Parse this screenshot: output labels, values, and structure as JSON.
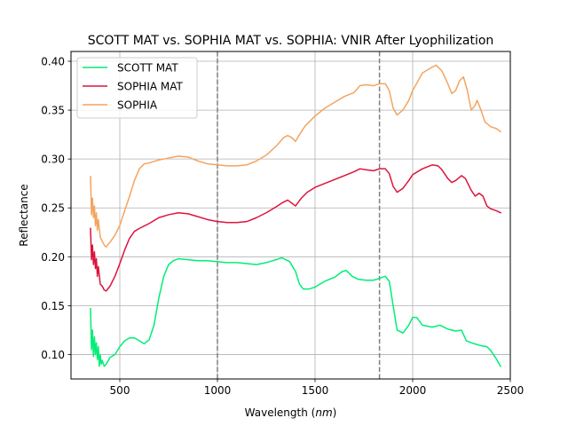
{
  "chart_data": {
    "type": "line",
    "title": "SCOTT MAT vs. SOPHIA MAT vs. SOPHIA: VNIR After Lyophilization",
    "xlabel_prefix": "Wavelength (",
    "xlabel_unit": "nm",
    "xlabel_suffix": ")",
    "ylabel": "Reflectance",
    "xlim": [
      250,
      2500
    ],
    "ylim": [
      0.075,
      0.41
    ],
    "xticks": [
      500,
      1000,
      1500,
      2000,
      2500
    ],
    "xtick_labels": [
      "500",
      "1000",
      "1500",
      "2000",
      "2500"
    ],
    "yticks": [
      0.1,
      0.15,
      0.2,
      0.25,
      0.3,
      0.35,
      0.4
    ],
    "ytick_labels": [
      "0.10",
      "0.15",
      "0.20",
      "0.25",
      "0.30",
      "0.35",
      "0.40"
    ],
    "grid": true,
    "legend_position": "top-left",
    "vlines": [
      1000,
      1830
    ],
    "vline_color": "#808080",
    "series": [
      {
        "name": "SCOTT MAT",
        "color": "#00ee76",
        "points": [
          [
            350,
            0.147
          ],
          [
            355,
            0.105
          ],
          [
            360,
            0.125
          ],
          [
            365,
            0.098
          ],
          [
            370,
            0.118
          ],
          [
            375,
            0.1
          ],
          [
            380,
            0.112
          ],
          [
            385,
            0.095
          ],
          [
            390,
            0.108
          ],
          [
            395,
            0.088
          ],
          [
            400,
            0.1
          ],
          [
            405,
            0.09
          ],
          [
            410,
            0.094
          ],
          [
            420,
            0.088
          ],
          [
            430,
            0.09
          ],
          [
            450,
            0.097
          ],
          [
            475,
            0.1
          ],
          [
            500,
            0.108
          ],
          [
            525,
            0.114
          ],
          [
            550,
            0.117
          ],
          [
            575,
            0.117
          ],
          [
            600,
            0.114
          ],
          [
            625,
            0.111
          ],
          [
            650,
            0.115
          ],
          [
            675,
            0.13
          ],
          [
            700,
            0.158
          ],
          [
            725,
            0.18
          ],
          [
            750,
            0.192
          ],
          [
            775,
            0.196
          ],
          [
            800,
            0.198
          ],
          [
            850,
            0.197
          ],
          [
            900,
            0.196
          ],
          [
            950,
            0.196
          ],
          [
            1000,
            0.195
          ],
          [
            1050,
            0.194
          ],
          [
            1100,
            0.194
          ],
          [
            1150,
            0.193
          ],
          [
            1200,
            0.192
          ],
          [
            1250,
            0.194
          ],
          [
            1300,
            0.197
          ],
          [
            1330,
            0.199
          ],
          [
            1370,
            0.195
          ],
          [
            1400,
            0.185
          ],
          [
            1420,
            0.172
          ],
          [
            1440,
            0.167
          ],
          [
            1470,
            0.167
          ],
          [
            1500,
            0.169
          ],
          [
            1550,
            0.175
          ],
          [
            1600,
            0.179
          ],
          [
            1640,
            0.185
          ],
          [
            1660,
            0.186
          ],
          [
            1690,
            0.18
          ],
          [
            1720,
            0.177
          ],
          [
            1760,
            0.176
          ],
          [
            1800,
            0.176
          ],
          [
            1830,
            0.178
          ],
          [
            1860,
            0.18
          ],
          [
            1880,
            0.175
          ],
          [
            1900,
            0.15
          ],
          [
            1920,
            0.125
          ],
          [
            1950,
            0.122
          ],
          [
            1980,
            0.13
          ],
          [
            2000,
            0.138
          ],
          [
            2020,
            0.138
          ],
          [
            2050,
            0.13
          ],
          [
            2100,
            0.128
          ],
          [
            2140,
            0.13
          ],
          [
            2180,
            0.126
          ],
          [
            2220,
            0.124
          ],
          [
            2250,
            0.125
          ],
          [
            2275,
            0.114
          ],
          [
            2300,
            0.112
          ],
          [
            2350,
            0.109
          ],
          [
            2380,
            0.108
          ],
          [
            2400,
            0.104
          ],
          [
            2430,
            0.095
          ],
          [
            2450,
            0.088
          ]
        ]
      },
      {
        "name": "SOPHIA MAT",
        "color": "#dc143c",
        "points": [
          [
            350,
            0.229
          ],
          [
            355,
            0.197
          ],
          [
            360,
            0.212
          ],
          [
            365,
            0.192
          ],
          [
            370,
            0.205
          ],
          [
            375,
            0.188
          ],
          [
            380,
            0.198
          ],
          [
            385,
            0.18
          ],
          [
            390,
            0.19
          ],
          [
            400,
            0.172
          ],
          [
            410,
            0.17
          ],
          [
            420,
            0.166
          ],
          [
            430,
            0.165
          ],
          [
            450,
            0.17
          ],
          [
            475,
            0.18
          ],
          [
            500,
            0.193
          ],
          [
            525,
            0.207
          ],
          [
            550,
            0.219
          ],
          [
            575,
            0.226
          ],
          [
            600,
            0.229
          ],
          [
            650,
            0.234
          ],
          [
            700,
            0.24
          ],
          [
            750,
            0.243
          ],
          [
            800,
            0.245
          ],
          [
            850,
            0.244
          ],
          [
            900,
            0.241
          ],
          [
            950,
            0.238
          ],
          [
            1000,
            0.236
          ],
          [
            1050,
            0.235
          ],
          [
            1100,
            0.235
          ],
          [
            1150,
            0.236
          ],
          [
            1200,
            0.24
          ],
          [
            1250,
            0.245
          ],
          [
            1300,
            0.251
          ],
          [
            1330,
            0.255
          ],
          [
            1360,
            0.258
          ],
          [
            1380,
            0.255
          ],
          [
            1400,
            0.252
          ],
          [
            1430,
            0.26
          ],
          [
            1460,
            0.266
          ],
          [
            1500,
            0.271
          ],
          [
            1550,
            0.275
          ],
          [
            1600,
            0.279
          ],
          [
            1650,
            0.283
          ],
          [
            1700,
            0.287
          ],
          [
            1730,
            0.29
          ],
          [
            1760,
            0.289
          ],
          [
            1800,
            0.288
          ],
          [
            1830,
            0.29
          ],
          [
            1860,
            0.29
          ],
          [
            1880,
            0.285
          ],
          [
            1900,
            0.272
          ],
          [
            1920,
            0.266
          ],
          [
            1950,
            0.27
          ],
          [
            1980,
            0.278
          ],
          [
            2000,
            0.284
          ],
          [
            2050,
            0.29
          ],
          [
            2100,
            0.294
          ],
          [
            2130,
            0.293
          ],
          [
            2150,
            0.289
          ],
          [
            2180,
            0.28
          ],
          [
            2200,
            0.276
          ],
          [
            2220,
            0.278
          ],
          [
            2250,
            0.283
          ],
          [
            2270,
            0.28
          ],
          [
            2300,
            0.268
          ],
          [
            2320,
            0.262
          ],
          [
            2340,
            0.265
          ],
          [
            2360,
            0.262
          ],
          [
            2380,
            0.252
          ],
          [
            2400,
            0.249
          ],
          [
            2430,
            0.247
          ],
          [
            2450,
            0.245
          ]
        ]
      },
      {
        "name": "SOPHIA",
        "color": "#f4a460",
        "points": [
          [
            350,
            0.282
          ],
          [
            355,
            0.243
          ],
          [
            360,
            0.26
          ],
          [
            365,
            0.24
          ],
          [
            370,
            0.252
          ],
          [
            375,
            0.232
          ],
          [
            380,
            0.245
          ],
          [
            385,
            0.227
          ],
          [
            390,
            0.238
          ],
          [
            400,
            0.22
          ],
          [
            410,
            0.216
          ],
          [
            420,
            0.212
          ],
          [
            430,
            0.21
          ],
          [
            450,
            0.215
          ],
          [
            475,
            0.222
          ],
          [
            500,
            0.232
          ],
          [
            525,
            0.247
          ],
          [
            550,
            0.262
          ],
          [
            575,
            0.278
          ],
          [
            600,
            0.29
          ],
          [
            625,
            0.295
          ],
          [
            650,
            0.296
          ],
          [
            700,
            0.299
          ],
          [
            750,
            0.301
          ],
          [
            800,
            0.303
          ],
          [
            850,
            0.302
          ],
          [
            900,
            0.298
          ],
          [
            950,
            0.295
          ],
          [
            1000,
            0.294
          ],
          [
            1050,
            0.293
          ],
          [
            1100,
            0.293
          ],
          [
            1150,
            0.294
          ],
          [
            1200,
            0.298
          ],
          [
            1250,
            0.304
          ],
          [
            1300,
            0.313
          ],
          [
            1340,
            0.322
          ],
          [
            1360,
            0.324
          ],
          [
            1380,
            0.322
          ],
          [
            1400,
            0.318
          ],
          [
            1420,
            0.325
          ],
          [
            1450,
            0.334
          ],
          [
            1500,
            0.344
          ],
          [
            1550,
            0.352
          ],
          [
            1600,
            0.358
          ],
          [
            1650,
            0.364
          ],
          [
            1700,
            0.368
          ],
          [
            1730,
            0.375
          ],
          [
            1760,
            0.376
          ],
          [
            1800,
            0.375
          ],
          [
            1830,
            0.377
          ],
          [
            1860,
            0.377
          ],
          [
            1880,
            0.37
          ],
          [
            1900,
            0.352
          ],
          [
            1920,
            0.345
          ],
          [
            1950,
            0.35
          ],
          [
            1980,
            0.36
          ],
          [
            2000,
            0.37
          ],
          [
            2050,
            0.388
          ],
          [
            2100,
            0.394
          ],
          [
            2120,
            0.396
          ],
          [
            2150,
            0.39
          ],
          [
            2180,
            0.377
          ],
          [
            2200,
            0.367
          ],
          [
            2220,
            0.37
          ],
          [
            2240,
            0.38
          ],
          [
            2260,
            0.384
          ],
          [
            2280,
            0.37
          ],
          [
            2300,
            0.35
          ],
          [
            2320,
            0.355
          ],
          [
            2330,
            0.36
          ],
          [
            2350,
            0.35
          ],
          [
            2370,
            0.338
          ],
          [
            2400,
            0.333
          ],
          [
            2430,
            0.331
          ],
          [
            2450,
            0.328
          ]
        ]
      }
    ]
  }
}
